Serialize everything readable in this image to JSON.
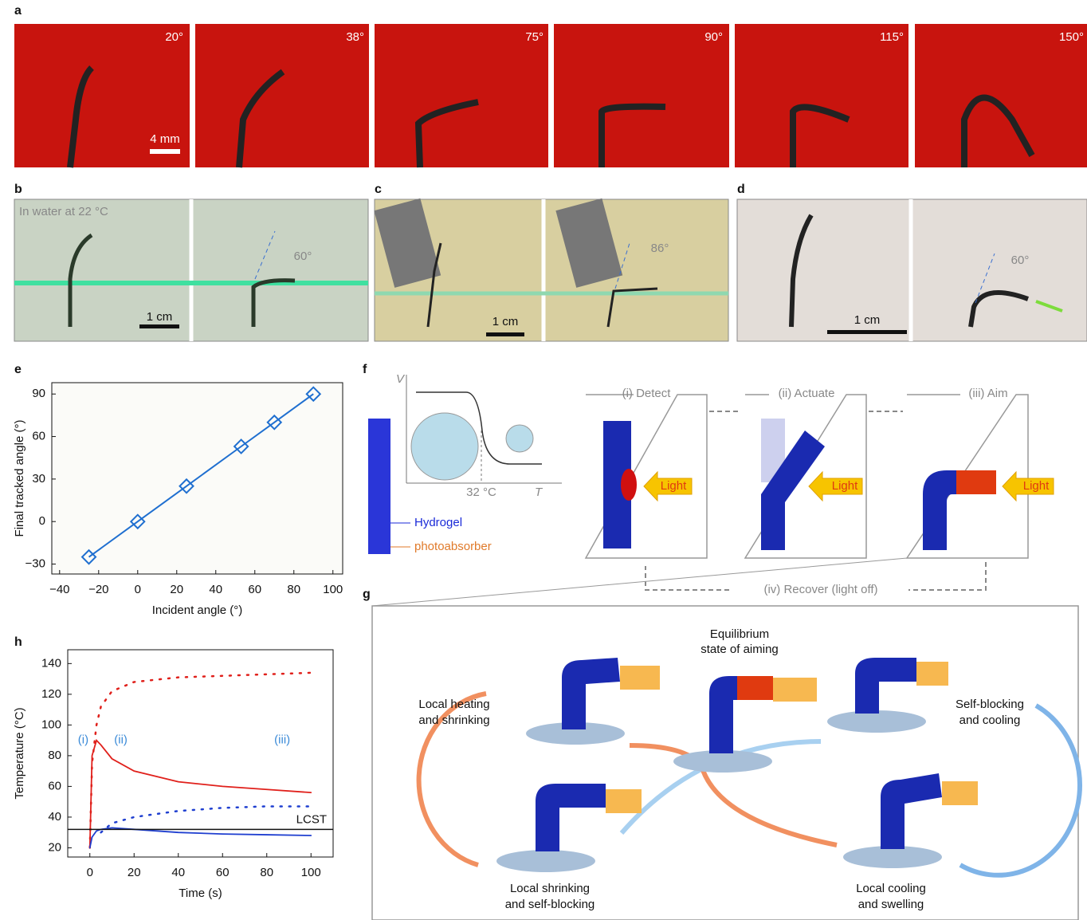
{
  "panel_labels": [
    "a",
    "b",
    "c",
    "d",
    "e",
    "f",
    "g",
    "h"
  ],
  "panel_a": {
    "angles": [
      "20°",
      "38°",
      "75°",
      "90°",
      "115°",
      "150°"
    ],
    "scale": "4 mm"
  },
  "panel_b": {
    "caption": "In water at 22 °C",
    "angle": "60°",
    "scale": "1 cm"
  },
  "panel_c": {
    "angle": "86°",
    "scale": "1 cm"
  },
  "panel_d": {
    "angle": "60°",
    "scale": "1 cm"
  },
  "panel_f": {
    "y_axis": "V",
    "x_axis": "T",
    "temperature": "32 °C",
    "hydrogel": "Hydrogel",
    "photoabsorber": "photoabsorber",
    "steps": [
      "(i) Detect",
      "(ii) Actuate",
      "(iii) Aim"
    ],
    "light": "Light",
    "recover": "(iv) Recover (light off)"
  },
  "panel_g": {
    "center": [
      "Equilibrium",
      "state of aiming"
    ],
    "upper_left": [
      "Local heating",
      "and shrinking"
    ],
    "upper_right": [
      "Self-blocking",
      "and cooling"
    ],
    "lower_left": [
      "Local shrinking",
      "and self-blocking"
    ],
    "lower_right": [
      "Local cooling",
      "and swelling"
    ]
  },
  "chart_data": [
    {
      "type": "scatter",
      "x": [
        -25,
        0,
        25,
        53,
        70,
        90
      ],
      "values": [
        -25,
        0,
        25,
        53,
        70,
        90
      ],
      "color": "#1f6fd0",
      "xlabel": "Incident angle (°)",
      "ylabel": "Final tracked angle (°)",
      "xlim": [
        -44,
        105
      ],
      "ylim": [
        -37,
        98
      ],
      "xticks": [
        {
          "value": -40,
          "label": "−40"
        },
        {
          "value": -20,
          "label": "−20"
        },
        0,
        20,
        40,
        60,
        80,
        100
      ],
      "yticks": [
        {
          "value": -30,
          "label": "−30"
        },
        0,
        30,
        60,
        90
      ]
    },
    {
      "type": "line",
      "x": [
        0,
        1,
        3,
        5,
        10,
        20,
        40,
        60,
        80,
        100
      ],
      "series": [
        {
          "color": "#e0201b",
          "style": "solid",
          "values": [
            20,
            80,
            90,
            87,
            78,
            70,
            63,
            60,
            58,
            56
          ]
        },
        {
          "color": "#e0201b",
          "style": "dotted",
          "values": [
            20,
            75,
            100,
            112,
            122,
            128,
            131,
            132,
            133,
            134
          ]
        },
        {
          "color": "#1f3fd0",
          "style": "dotted",
          "values": [
            null,
            null,
            null,
            30,
            36,
            40,
            44,
            46,
            47,
            47
          ]
        },
        {
          "color": "#1f3fd0",
          "style": "solid",
          "values": [
            20,
            27,
            31,
            32,
            33,
            32,
            30,
            29,
            28.5,
            28
          ]
        }
      ],
      "hline": {
        "value": 32,
        "label": "LCST"
      },
      "annotations": [
        "(i)",
        "(ii)",
        "(iii)"
      ],
      "xlabel": "Time (s)",
      "ylabel": "Temperature (°C)",
      "xlim": [
        -10,
        110
      ],
      "ylim": [
        14,
        149
      ],
      "xticks": [
        0,
        20,
        40,
        60,
        80,
        100
      ],
      "yticks": [
        20,
        40,
        60,
        80,
        100,
        120,
        140
      ]
    }
  ]
}
